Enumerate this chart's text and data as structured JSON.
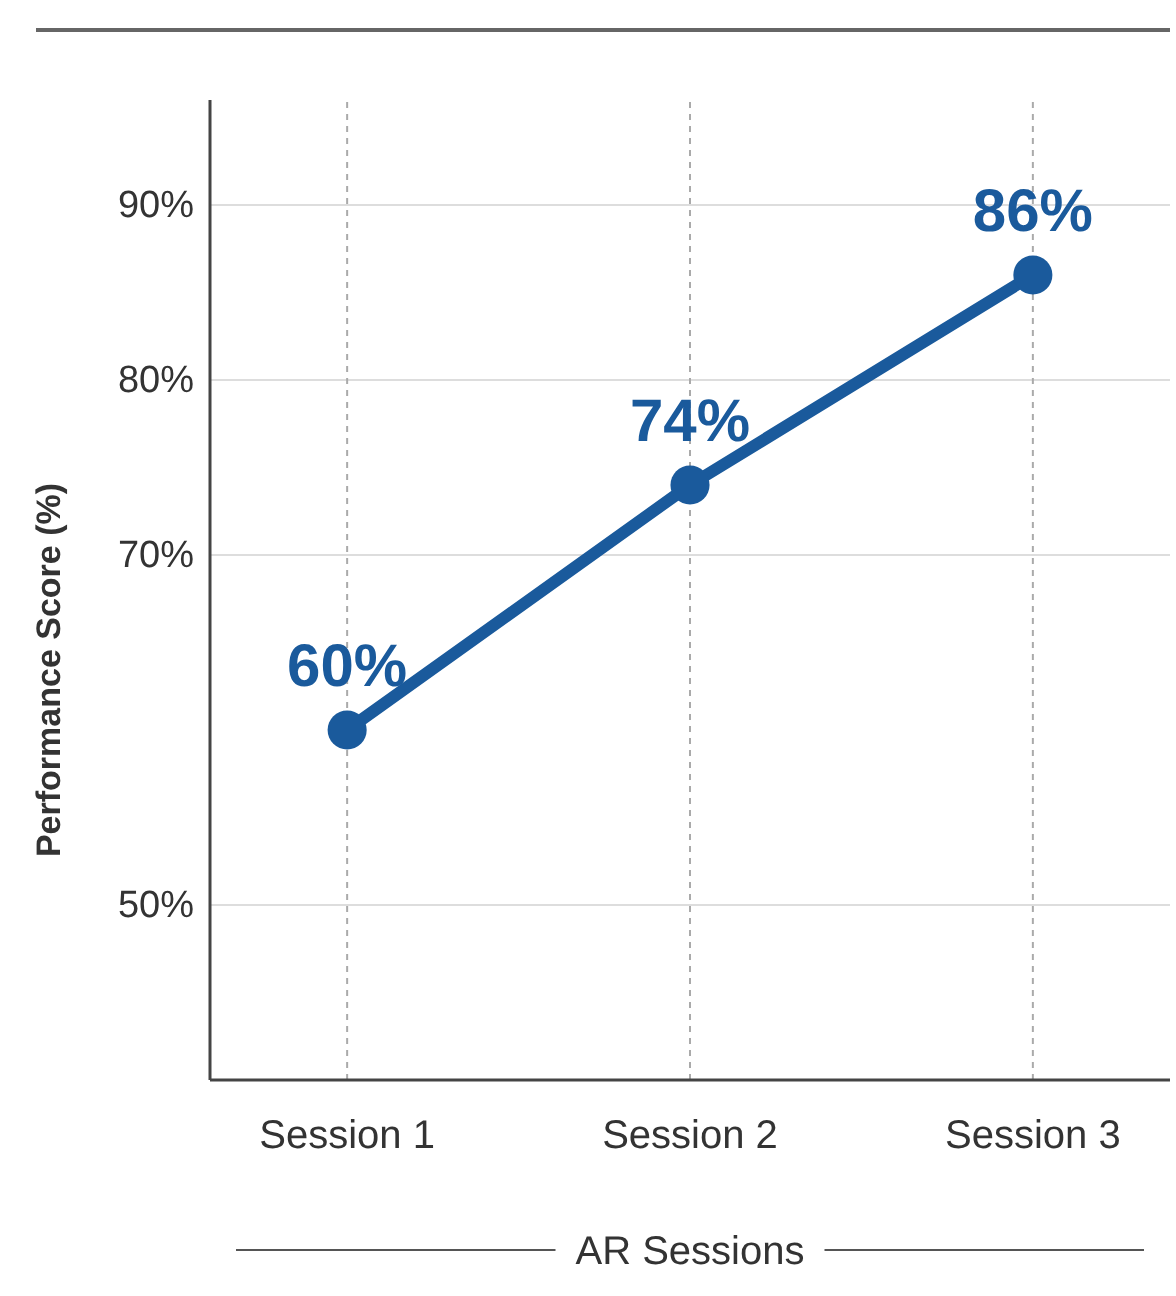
{
  "chart_data": {
    "type": "line",
    "xlabel": "AR Sessions",
    "ylabel": "Performance Score  (%)",
    "categories": [
      "Session 1",
      "Session 2",
      "Session 3"
    ],
    "series": [
      {
        "color": "#1a5a9c",
        "values": [
          60,
          74,
          86
        ],
        "value_labels": [
          "60%",
          "74%",
          "86%"
        ]
      }
    ],
    "ylim": [
      40,
      96
    ],
    "yticks": [
      {
        "value": 50,
        "label": "50%"
      },
      {
        "value": 70,
        "label": "70%"
      },
      {
        "value": 80,
        "label": "80%"
      },
      {
        "value": 90,
        "label": "90%"
      }
    ],
    "grid": true,
    "marker": "circle",
    "line_style": "solid"
  }
}
